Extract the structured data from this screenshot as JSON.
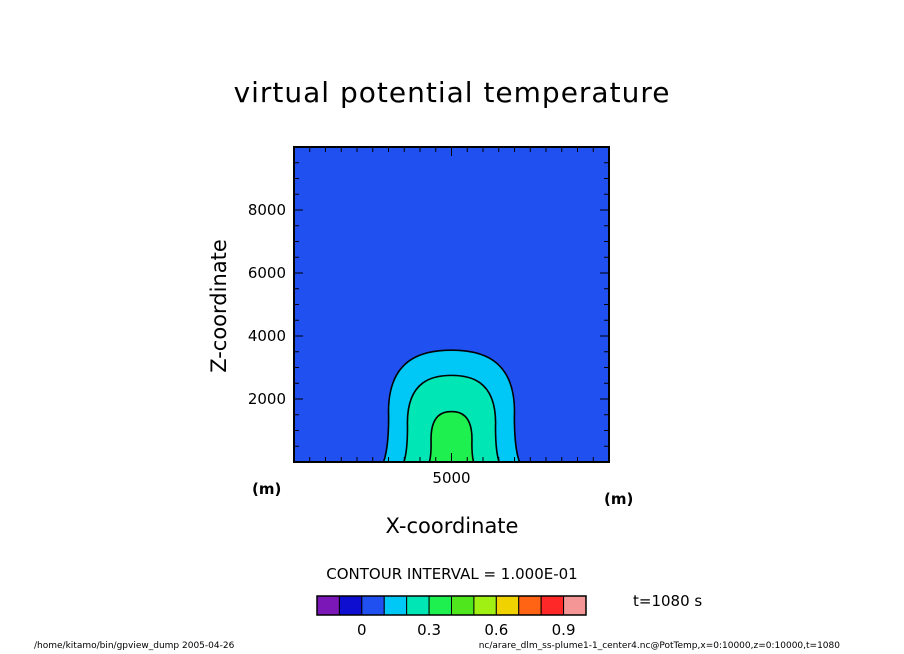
{
  "chart_data": {
    "type": "contour",
    "title": "virtual potential temperature",
    "xlabel": "X-coordinate",
    "ylabel": "Z-coordinate",
    "x_unit": "(m)",
    "z_unit": "(m)",
    "xlim": [
      0,
      10000
    ],
    "ylim": [
      0,
      10000
    ],
    "x_ticks": [
      {
        "value": 5000,
        "label": "5000"
      }
    ],
    "y_ticks": [
      {
        "value": 2000,
        "label": "2000"
      },
      {
        "value": 4000,
        "label": "4000"
      },
      {
        "value": 6000,
        "label": "6000"
      },
      {
        "value": 8000,
        "label": "8000"
      }
    ],
    "contour_interval": "CONTOUR INTERVAL = 1.000E-01",
    "time": "t=1080 s",
    "colorbar": {
      "colors": [
        "#7a17b6",
        "#0e0ed0",
        "#2050f0",
        "#00c8f6",
        "#00e6b4",
        "#1ef050",
        "#50e61e",
        "#a0f014",
        "#f0d200",
        "#ff6414",
        "#ff2828",
        "#f59696"
      ],
      "tick_labels": [
        "0",
        "0.3",
        "0.6",
        "0.9"
      ]
    },
    "contours": [
      {
        "level": 0.1,
        "fill": "#00c8f6",
        "center_x": 5000,
        "half_width": 2000,
        "top": 3550
      },
      {
        "level": 0.2,
        "fill": "#00e6b4",
        "center_x": 5000,
        "half_width": 1400,
        "top": 2750
      },
      {
        "level": 0.3,
        "fill": "#1ef050",
        "center_x": 5000,
        "half_width": 650,
        "top": 1600
      }
    ],
    "background_fill": "#2050f0"
  },
  "footer": {
    "left": "/home/kitamo/bin/gpview_dump  2005-04-26",
    "right": "nc/arare_dlm_ss-plume1-1_center4.nc@PotTemp,x=0:10000,z=0:10000,t=1080"
  }
}
